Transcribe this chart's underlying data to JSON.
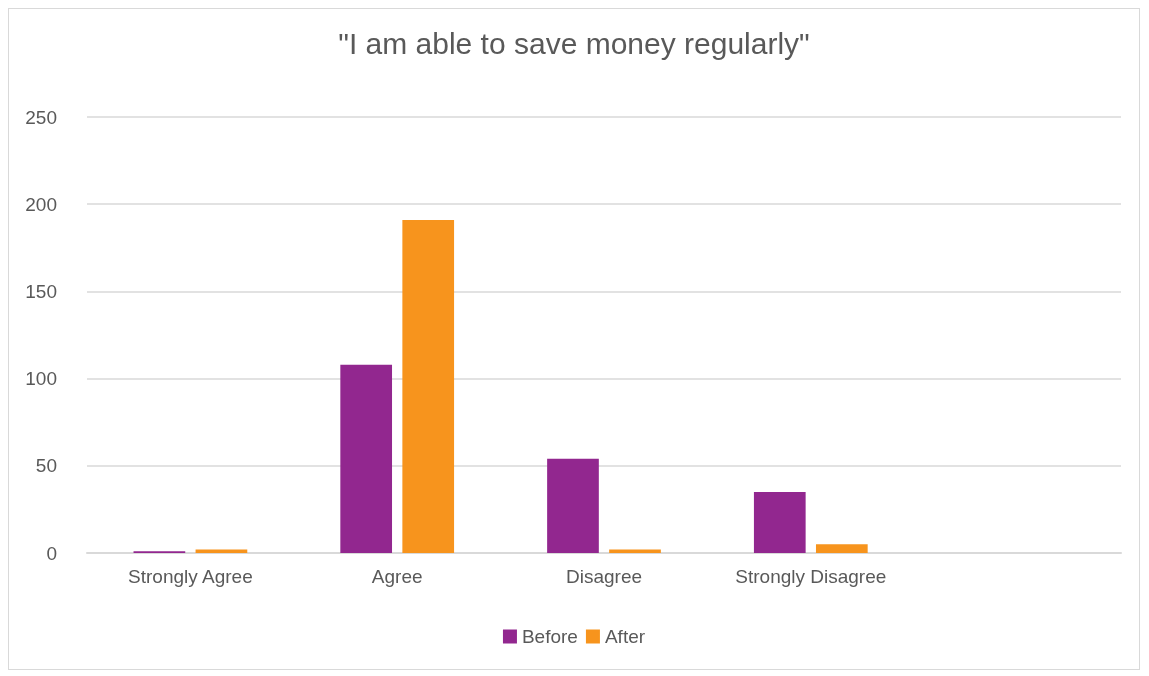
{
  "chart_data": {
    "type": "bar",
    "title": "\"I am able to save money regularly\"",
    "categories": [
      "Strongly Agree",
      "Agree",
      "Disagree",
      "Strongly Disagree",
      null
    ],
    "series": [
      {
        "name": "Before",
        "color": "#92278f",
        "values": [
          1,
          108,
          54,
          35,
          null
        ]
      },
      {
        "name": "After",
        "color": "#f7941d",
        "values": [
          2,
          191,
          2,
          5,
          null
        ]
      }
    ],
    "ylim": [
      0,
      250
    ],
    "yticks": [
      0,
      50,
      100,
      150,
      200,
      250
    ],
    "grid": "y",
    "legend": "bottom"
  }
}
